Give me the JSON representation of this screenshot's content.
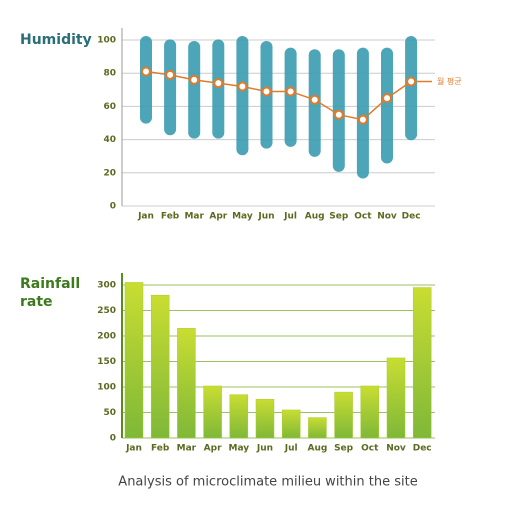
{
  "chart_data": [
    {
      "type": "range-line",
      "title": "Humidity",
      "categories": [
        "Jan",
        "Feb",
        "Mar",
        "Apr",
        "May",
        "Jun",
        "Jul",
        "Aug",
        "Sep",
        "Oct",
        "Nov",
        "Dec"
      ],
      "range_low": [
        52,
        45,
        43,
        43,
        33,
        37,
        38,
        32,
        23,
        19,
        28,
        42
      ],
      "range_high": [
        100,
        98,
        97,
        98,
        100,
        97,
        93,
        92,
        92,
        93,
        93,
        100
      ],
      "range_color": "#3a9bb0",
      "series": [
        {
          "name": "월 평균",
          "color": "#e07b2a",
          "values": [
            81,
            79,
            76,
            74,
            72,
            69,
            69,
            64,
            55,
            52,
            65,
            75
          ]
        }
      ],
      "ylim": [
        0,
        100
      ],
      "yticks": [
        0,
        20,
        40,
        60,
        80,
        100
      ],
      "grid": true
    },
    {
      "type": "bar",
      "title": "Rainfall rate",
      "categories": [
        "Jan",
        "Feb",
        "Mar",
        "Apr",
        "May",
        "Jun",
        "Jul",
        "Aug",
        "Sep",
        "Oct",
        "Nov",
        "Dec"
      ],
      "values": [
        305,
        280,
        215,
        102,
        85,
        76,
        55,
        40,
        90,
        102,
        157,
        295
      ],
      "color": "#a8cc2e",
      "ylim": [
        0,
        300
      ],
      "yticks": [
        0,
        50,
        100,
        150,
        200,
        250,
        300
      ],
      "grid": true
    }
  ],
  "caption": "Analysis of microclimate milieu within the site"
}
